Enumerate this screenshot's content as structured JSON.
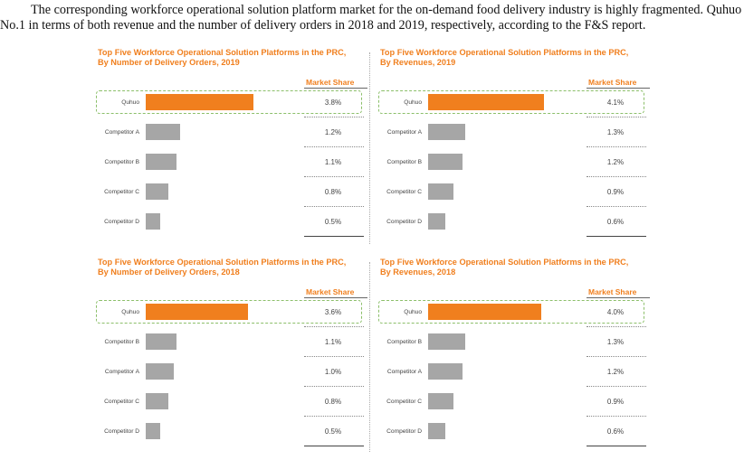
{
  "intro": {
    "line1": "The corresponding workforce operational solution platform market for the on-demand food delivery industry is highly fragmented. Quhuo ranked",
    "line2": "No.1 in terms of both revenue and the number of delivery orders in 2018 and 2019, respectively, according to the F&S report."
  },
  "colors": {
    "highlight": "#f07f1e",
    "other": "#a6a6a6"
  },
  "chart_data": [
    {
      "type": "bar",
      "title_line1": "Top Five Workforce Operational Solution Platforms in the PRC,",
      "title_line2": "By Number of Delivery Orders, 2019",
      "value_header": "Market Share",
      "categories": [
        "Quhuo",
        "Competitor A",
        "Competitor B",
        "Competitor C",
        "Competitor D"
      ],
      "values": [
        3.8,
        1.2,
        1.1,
        0.8,
        0.5
      ],
      "labels": [
        "3.8%",
        "1.2%",
        "1.1%",
        "0.8%",
        "0.5%"
      ],
      "highlight_index": 0,
      "xlim": [
        0,
        4.8
      ]
    },
    {
      "type": "bar",
      "title_line1": "Top Five Workforce Operational Solution Platforms in the PRC,",
      "title_line2": "By Revenues, 2019",
      "value_header": "Market Share",
      "categories": [
        "Quhuo",
        "Competitor A",
        "Competitor B",
        "Competitor C",
        "Competitor D"
      ],
      "values": [
        4.1,
        1.3,
        1.2,
        0.9,
        0.6
      ],
      "labels": [
        "4.1%",
        "1.3%",
        "1.2%",
        "0.9%",
        "0.6%"
      ],
      "highlight_index": 0,
      "xlim": [
        0,
        4.8
      ]
    },
    {
      "type": "bar",
      "title_line1": "Top Five Workforce Operational Solution Platforms in the PRC,",
      "title_line2": "By Number of Delivery Orders, 2018",
      "value_header": "Market Share",
      "categories": [
        "Quhuo",
        "Competitor B",
        "Competitor A",
        "Competitor C",
        "Competitor D"
      ],
      "values": [
        3.6,
        1.1,
        1.0,
        0.8,
        0.5
      ],
      "labels": [
        "3.6%",
        "1.1%",
        "1.0%",
        "0.8%",
        "0.5%"
      ],
      "highlight_index": 0,
      "xlim": [
        0,
        4.8
      ]
    },
    {
      "type": "bar",
      "title_line1": "Top Five Workforce Operational Solution Platforms in the PRC,",
      "title_line2": "By Revenues, 2018",
      "value_header": "Market Share",
      "categories": [
        "Quhuo",
        "Competitor B",
        "Competitor A",
        "Competitor C",
        "Competitor D"
      ],
      "values": [
        4.0,
        1.3,
        1.2,
        0.9,
        0.6
      ],
      "labels": [
        "4.0%",
        "1.3%",
        "1.2%",
        "0.9%",
        "0.6%"
      ],
      "highlight_index": 0,
      "xlim": [
        0,
        4.8
      ]
    }
  ]
}
